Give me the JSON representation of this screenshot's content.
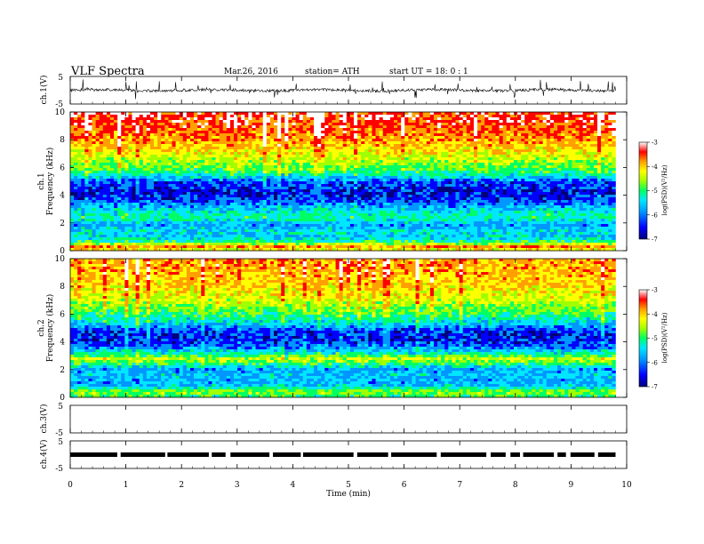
{
  "header": {
    "title": "VLF  Spectra",
    "date": "Mar.26, 2016",
    "station": "station= ATH",
    "start": "start  UT  =    18: 0  : 1"
  },
  "colors": {
    "spectral_scale": [
      "#00007a",
      "#0000ff",
      "#0096ff",
      "#00e6ff",
      "#00ff64",
      "#a0ff00",
      "#ffff00",
      "#ffa000",
      "#ff0000",
      "#ffffff"
    ],
    "waveform": "#000000"
  },
  "chart_data": [
    {
      "type": "line",
      "name_label": "ch.1(V)",
      "ylim": [
        -5,
        5
      ],
      "y_ticks": [
        "5",
        "-5"
      ],
      "xlim": [
        0,
        10
      ],
      "description_signal": "noisy waveform centred near 0 V with spikes",
      "range_values": {
        "min": -5,
        "max": 5
      }
    },
    {
      "type": "heatmap",
      "channel": "ch.1",
      "ylabel": "Frequency  (kHz)",
      "ylim": [
        0,
        10
      ],
      "y_ticks": [
        "0",
        "2",
        "4",
        "6",
        "8",
        "10"
      ],
      "xlim": [
        0,
        9.8
      ],
      "colorbar": {
        "label": "log(PSD)(V²/Hz)",
        "range": [
          -7,
          -3
        ],
        "ticks": [
          "-3",
          "-4",
          "-5",
          "-6",
          "-7"
        ]
      },
      "frequency_profile_kHz": [
        [
          0,
          -4.6
        ],
        [
          0.3,
          -3.8
        ],
        [
          0.6,
          -5.2
        ],
        [
          1.0,
          -5.8
        ],
        [
          1.4,
          -5.6
        ],
        [
          1.8,
          -6.0
        ],
        [
          2.0,
          -5.9
        ],
        [
          2.3,
          -5.4
        ],
        [
          2.7,
          -5.5
        ],
        [
          3.0,
          -5.8
        ],
        [
          3.6,
          -6.4
        ],
        [
          4.2,
          -6.7
        ],
        [
          5.0,
          -6.3
        ],
        [
          5.6,
          -5.3
        ],
        [
          6.0,
          -5.0
        ],
        [
          7.0,
          -4.4
        ],
        [
          8.0,
          -3.9
        ],
        [
          9.0,
          -3.6
        ],
        [
          10.0,
          -3.4
        ]
      ]
    },
    {
      "type": "heatmap",
      "channel": "ch.2",
      "ylabel": "Frequency  (kHz)",
      "ylim": [
        0,
        10
      ],
      "y_ticks": [
        "0",
        "2",
        "4",
        "6",
        "8",
        "10"
      ],
      "xlim": [
        0,
        9.8
      ],
      "colorbar": {
        "label": "log(PSD)(V²/Hz)",
        "range": [
          -7,
          -3
        ],
        "ticks": [
          "-3",
          "-4",
          "-5",
          "-6",
          "-7"
        ]
      },
      "frequency_profile_kHz": [
        [
          0,
          -5.2
        ],
        [
          0.4,
          -4.8
        ],
        [
          0.8,
          -5.8
        ],
        [
          1.2,
          -6.0
        ],
        [
          1.6,
          -5.8
        ],
        [
          2.0,
          -6.0
        ],
        [
          2.4,
          -5.3
        ],
        [
          2.8,
          -4.6
        ],
        [
          3.1,
          -5.4
        ],
        [
          3.6,
          -6.2
        ],
        [
          4.2,
          -6.6
        ],
        [
          4.8,
          -6.5
        ],
        [
          5.3,
          -5.8
        ],
        [
          6.0,
          -5.2
        ],
        [
          7.0,
          -4.6
        ],
        [
          8.0,
          -4.2
        ],
        [
          9.0,
          -4.0
        ],
        [
          10.0,
          -3.9
        ]
      ]
    },
    {
      "type": "line",
      "name_label": "ch.3(V)",
      "ylim": [
        -5,
        5
      ],
      "y_ticks": [
        "5",
        "-5"
      ],
      "xlim": [
        0,
        10
      ],
      "values_note": "flat"
    },
    {
      "type": "line",
      "name_label": "ch.4(V)",
      "ylim": [
        -5,
        5
      ],
      "y_ticks": [
        "5",
        "-5"
      ],
      "xlim": [
        0,
        10
      ],
      "level_V": 0
    }
  ],
  "x_axis": {
    "label": "Time  (min)",
    "range": [
      0,
      10
    ],
    "ticks": [
      "0",
      "1",
      "2",
      "3",
      "4",
      "5",
      "6",
      "7",
      "8",
      "9",
      "10"
    ]
  },
  "labels": {
    "ch1_panel": "ch.1",
    "ch2_panel": "ch.2"
  }
}
